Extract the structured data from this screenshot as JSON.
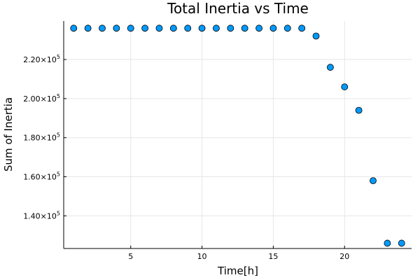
{
  "chart_data": {
    "type": "scatter",
    "title": "Total Inertia vs Time",
    "xlabel": "Time[h]",
    "ylabel": "Sum of Inertia",
    "xlim": [
      0.3,
      24.7
    ],
    "ylim": [
      123300,
      239700
    ],
    "x_ticks": [
      5,
      10,
      15,
      20
    ],
    "y_ticks": [
      140000,
      160000,
      180000,
      200000,
      220000
    ],
    "y_tick_labels": [
      {
        "mantissa": "1.40×10",
        "exp": "5"
      },
      {
        "mantissa": "1.60×10",
        "exp": "5"
      },
      {
        "mantissa": "1.80×10",
        "exp": "5"
      },
      {
        "mantissa": "2.00×10",
        "exp": "5"
      },
      {
        "mantissa": "2.20×10",
        "exp": "5"
      }
    ],
    "grid": true,
    "legend": "none",
    "marker_color": "#009AFA",
    "x": [
      1,
      2,
      3,
      4,
      5,
      6,
      7,
      8,
      9,
      10,
      11,
      12,
      13,
      14,
      15,
      16,
      17,
      18,
      19,
      20,
      21,
      22,
      23,
      24
    ],
    "y": [
      236000,
      236000,
      236000,
      236000,
      236000,
      236000,
      236000,
      236000,
      236000,
      236000,
      236000,
      236000,
      236000,
      236000,
      236000,
      236000,
      236000,
      232000,
      216000,
      206000,
      194000,
      158000,
      126000,
      126000
    ]
  }
}
